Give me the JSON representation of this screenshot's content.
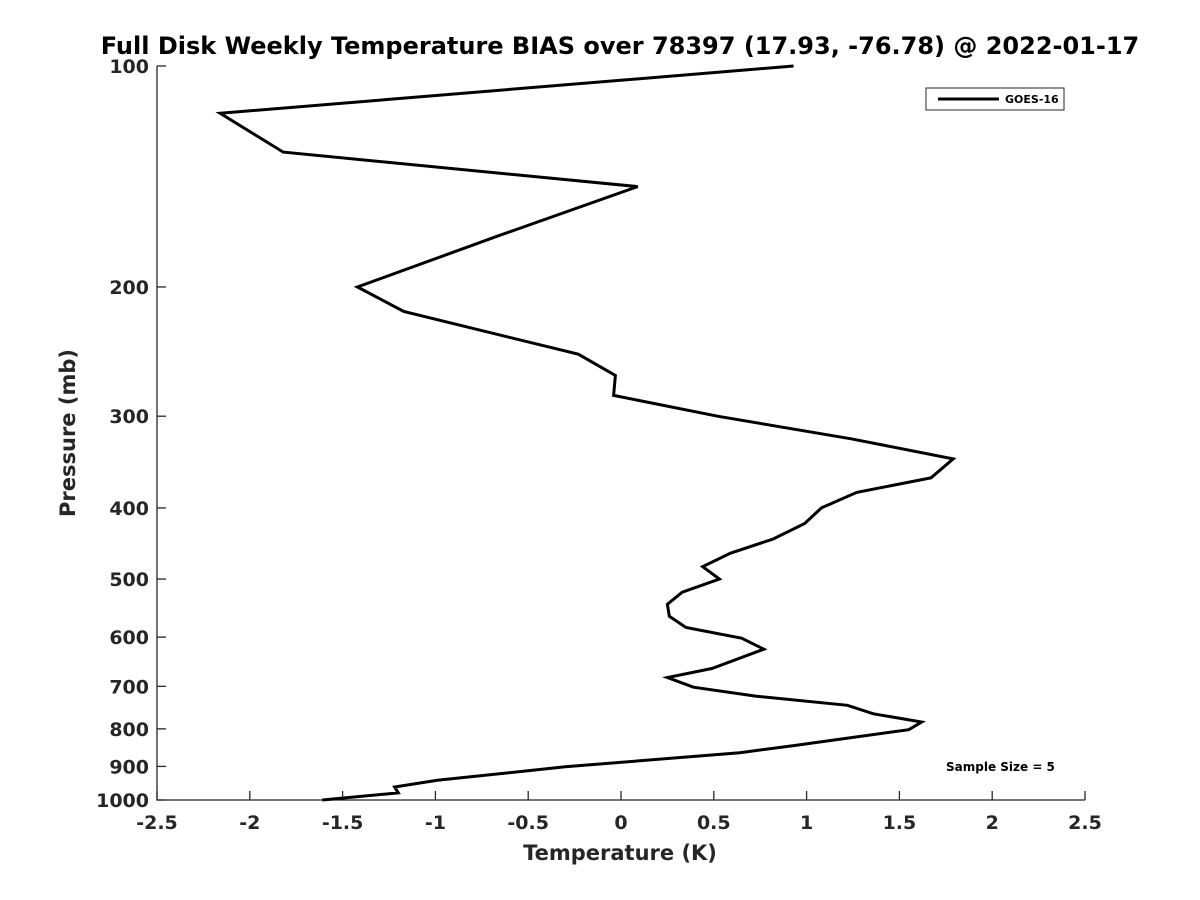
{
  "chart_data": {
    "type": "line",
    "title": "Full Disk Weekly Temperature BIAS over 78397 (17.93, -76.78) @ 2022-01-17",
    "xlabel": "Temperature (K)",
    "ylabel": "Pressure (mb)",
    "xlim": [
      -2.5,
      2.5
    ],
    "ylim": [
      100,
      1000
    ],
    "y_scale": "log",
    "y_reversed": true,
    "grid": false,
    "legend_position": "top-right",
    "x_ticks": [
      -2.5,
      -2,
      -1.5,
      -1,
      -0.5,
      0,
      0.5,
      1,
      1.5,
      2,
      2.5
    ],
    "x_tick_labels": [
      "-2.5",
      "-2",
      "-1.5",
      "-1",
      "-0.5",
      "0",
      "0.5",
      "1",
      "1.5",
      "2",
      "2.5"
    ],
    "y_ticks": [
      100,
      200,
      300,
      400,
      500,
      600,
      700,
      800,
      900,
      1000
    ],
    "y_tick_labels": [
      "100",
      "200",
      "300",
      "400",
      "500",
      "600",
      "700",
      "800",
      "900",
      "1000"
    ],
    "series": [
      {
        "name": "GOES-16",
        "color": "#000000",
        "points": [
          [
            0.93,
            100
          ],
          [
            -2.16,
            116
          ],
          [
            -1.82,
            131
          ],
          [
            0.09,
            146
          ],
          [
            -0.65,
            170
          ],
          [
            -1.42,
            200
          ],
          [
            -1.17,
            216
          ],
          [
            -0.23,
            247
          ],
          [
            -0.03,
            264
          ],
          [
            -0.04,
            281
          ],
          [
            0.52,
            300
          ],
          [
            1.24,
            322
          ],
          [
            1.79,
            343
          ],
          [
            1.67,
            364
          ],
          [
            1.27,
            381
          ],
          [
            1.08,
            400
          ],
          [
            0.99,
            420
          ],
          [
            0.82,
            441
          ],
          [
            0.59,
            461
          ],
          [
            0.44,
            481
          ],
          [
            0.53,
            500
          ],
          [
            0.33,
            521
          ],
          [
            0.25,
            541
          ],
          [
            0.26,
            562
          ],
          [
            0.35,
            582
          ],
          [
            0.65,
            602
          ],
          [
            0.77,
            623
          ],
          [
            0.49,
            662
          ],
          [
            0.25,
            681
          ],
          [
            0.39,
            702
          ],
          [
            0.73,
            722
          ],
          [
            1.22,
            743
          ],
          [
            1.36,
            763
          ],
          [
            1.62,
            783
          ],
          [
            1.55,
            802
          ],
          [
            0.93,
            843
          ],
          [
            0.64,
            862
          ],
          [
            -0.3,
            901
          ],
          [
            -0.99,
            940
          ],
          [
            -1.22,
            960
          ],
          [
            -1.2,
            978
          ],
          [
            -1.61,
            1000
          ]
        ]
      }
    ],
    "annotation": "Sample Size = 5"
  }
}
